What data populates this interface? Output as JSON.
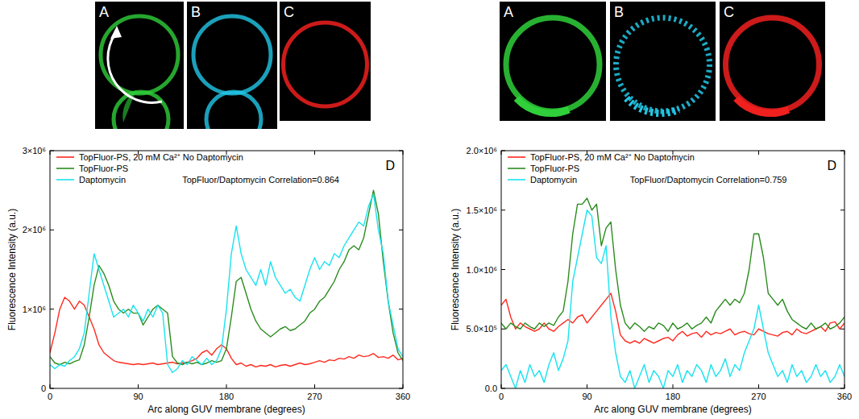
{
  "chart_data": [
    {
      "type": "line",
      "image_labels": [
        "A",
        "B",
        "C"
      ],
      "panel_label": "D",
      "x_label": "Arc along GUV membrane (degrees)",
      "y_label": "Fluorescence Intensity (a.u.)",
      "annotation": "TopFluor/Daptomycin Correlation=0.864",
      "legend": "upper left",
      "grid": false,
      "xlim": [
        0,
        360
      ],
      "xticks": [
        0,
        90,
        180,
        270,
        360
      ],
      "ylim": [
        0,
        3000000
      ],
      "yticks": [
        0,
        {
          "value": 1000000,
          "label": "1×10⁶"
        },
        {
          "value": 2000000,
          "label": "2×10⁶"
        },
        {
          "value": 3000000,
          "label": "3×10⁶"
        }
      ],
      "x": [
        0,
        5,
        10,
        15,
        20,
        25,
        30,
        35,
        40,
        45,
        50,
        55,
        60,
        65,
        70,
        75,
        80,
        85,
        90,
        95,
        100,
        105,
        110,
        115,
        120,
        125,
        130,
        135,
        140,
        145,
        150,
        155,
        160,
        165,
        170,
        175,
        180,
        185,
        190,
        195,
        200,
        205,
        210,
        215,
        220,
        225,
        230,
        235,
        240,
        245,
        250,
        255,
        260,
        265,
        270,
        275,
        280,
        285,
        290,
        295,
        300,
        305,
        310,
        315,
        320,
        325,
        330,
        335,
        340,
        345,
        350,
        355,
        360
      ],
      "series": [
        {
          "name": "TopFluor-PS, 20 mM Ca²⁺ No Daptomycin",
          "color": "#ff2a1f",
          "values": [
            450000,
            700000,
            1000000,
            1150000,
            1100000,
            1000000,
            1100000,
            1050000,
            900000,
            750000,
            550000,
            450000,
            400000,
            350000,
            330000,
            320000,
            310000,
            300000,
            310000,
            300000,
            310000,
            320000,
            300000,
            310000,
            320000,
            330000,
            310000,
            320000,
            330000,
            350000,
            380000,
            450000,
            480000,
            420000,
            500000,
            550000,
            500000,
            380000,
            300000,
            320000,
            280000,
            300000,
            270000,
            290000,
            280000,
            300000,
            270000,
            290000,
            300000,
            280000,
            300000,
            320000,
            300000,
            310000,
            330000,
            350000,
            330000,
            360000,
            350000,
            380000,
            370000,
            400000,
            380000,
            420000,
            400000,
            410000,
            440000,
            390000,
            400000,
            380000,
            420000,
            360000,
            380000
          ]
        },
        {
          "name": "TopFluor-PS",
          "color": "#2a8c1e",
          "values": [
            400000,
            320000,
            300000,
            330000,
            310000,
            340000,
            360000,
            550000,
            900000,
            1300000,
            1550000,
            1450000,
            1300000,
            1100000,
            1000000,
            950000,
            1000000,
            950000,
            950000,
            800000,
            900000,
            1000000,
            1050000,
            1000000,
            950000,
            400000,
            320000,
            300000,
            330000,
            310000,
            330000,
            300000,
            320000,
            350000,
            330000,
            350000,
            500000,
            900000,
            1350000,
            1400000,
            1200000,
            1000000,
            850000,
            750000,
            700000,
            650000,
            700000,
            750000,
            780000,
            730000,
            750000,
            800000,
            850000,
            950000,
            1000000,
            1100000,
            1150000,
            1250000,
            1350000,
            1500000,
            1600000,
            1750000,
            1800000,
            1750000,
            1900000,
            2200000,
            2500000,
            2200000,
            1600000,
            1100000,
            700000,
            450000,
            350000
          ]
        },
        {
          "name": "Daptomycin",
          "color": "#19e3f0",
          "values": [
            300000,
            250000,
            300000,
            280000,
            350000,
            400000,
            500000,
            700000,
            1200000,
            1700000,
            1500000,
            1300000,
            1100000,
            900000,
            950000,
            1000000,
            900000,
            1050000,
            950000,
            850000,
            1000000,
            900000,
            1050000,
            950000,
            300000,
            200000,
            250000,
            350000,
            300000,
            400000,
            350000,
            300000,
            380000,
            300000,
            350000,
            500000,
            1000000,
            1700000,
            2050000,
            1700000,
            1500000,
            1400000,
            1300000,
            1500000,
            1300000,
            1600000,
            1400000,
            1300000,
            1200000,
            1250000,
            1150000,
            1100000,
            1300000,
            1500000,
            1650000,
            1500000,
            1600000,
            1550000,
            1700000,
            1650000,
            1800000,
            1900000,
            2000000,
            2100000,
            2050000,
            2300000,
            2450000,
            2000000,
            1700000,
            1100000,
            800000,
            500000,
            400000
          ]
        }
      ]
    },
    {
      "type": "line",
      "image_labels": [
        "A",
        "B",
        "C"
      ],
      "panel_label": "D",
      "x_label": "Arc along GUV membrane (degrees)",
      "y_label": "Fluorescence Intensity (a.u.)",
      "annotation": "TopFluor/Daptomycin Correlation=0.759",
      "legend": "upper left",
      "grid": false,
      "xlim": [
        0,
        360
      ],
      "xticks": [
        0,
        90,
        180,
        270,
        360
      ],
      "ylim": [
        0,
        2000000
      ],
      "yticks": [
        {
          "value": 0,
          "label": "0.0"
        },
        {
          "value": 500000,
          "label": "5.0×10⁵"
        },
        {
          "value": 1000000,
          "label": "1.0×10⁶"
        },
        {
          "value": 1500000,
          "label": "1.5×10⁶"
        },
        {
          "value": 2000000,
          "label": "2.0×10⁶"
        }
      ],
      "x": [
        0,
        5,
        10,
        15,
        20,
        25,
        30,
        35,
        40,
        45,
        50,
        55,
        60,
        65,
        70,
        75,
        80,
        85,
        90,
        95,
        100,
        105,
        110,
        115,
        120,
        125,
        130,
        135,
        140,
        145,
        150,
        155,
        160,
        165,
        170,
        175,
        180,
        185,
        190,
        195,
        200,
        205,
        210,
        215,
        220,
        225,
        230,
        235,
        240,
        245,
        250,
        255,
        260,
        265,
        270,
        275,
        280,
        285,
        290,
        295,
        300,
        305,
        310,
        315,
        320,
        325,
        330,
        335,
        340,
        345,
        350,
        355,
        360
      ],
      "series": [
        {
          "name": "TopFluor-PS, 20 mM Ca²⁺ No Daptomycin",
          "color": "#ff2a1f",
          "values": [
            700000,
            750000,
            600000,
            500000,
            550000,
            520000,
            500000,
            480000,
            500000,
            550000,
            500000,
            480000,
            520000,
            550000,
            580000,
            550000,
            600000,
            620000,
            550000,
            600000,
            650000,
            700000,
            750000,
            800000,
            650000,
            450000,
            400000,
            380000,
            400000,
            380000,
            420000,
            400000,
            380000,
            400000,
            420000,
            430000,
            400000,
            450000,
            480000,
            440000,
            460000,
            470000,
            430000,
            480000,
            450000,
            470000,
            460000,
            480000,
            500000,
            450000,
            470000,
            480000,
            460000,
            450000,
            500000,
            480000,
            460000,
            450000,
            440000,
            470000,
            480000,
            450000,
            500000,
            470000,
            460000,
            480000,
            500000,
            520000,
            480000,
            550000,
            560000,
            500000,
            550000
          ]
        },
        {
          "name": "TopFluor-PS",
          "color": "#2a8c1e",
          "values": [
            550000,
            500000,
            550000,
            520000,
            500000,
            550000,
            520000,
            500000,
            550000,
            520000,
            550000,
            530000,
            600000,
            650000,
            900000,
            1300000,
            1550000,
            1550000,
            1600000,
            1500000,
            1550000,
            1200000,
            1350000,
            1400000,
            1000000,
            700000,
            550000,
            500000,
            550000,
            520000,
            480000,
            520000,
            500000,
            550000,
            530000,
            480000,
            550000,
            500000,
            520000,
            550000,
            500000,
            530000,
            550000,
            600000,
            550000,
            650000,
            700000,
            750000,
            700000,
            750000,
            720000,
            800000,
            1000000,
            1300000,
            1300000,
            1100000,
            800000,
            750000,
            700000,
            750000,
            650000,
            580000,
            550000,
            520000,
            500000,
            550000,
            500000,
            520000,
            550000,
            500000,
            520000,
            550000,
            600000
          ]
        },
        {
          "name": "Daptomycin",
          "color": "#19e3f0",
          "values": [
            150000,
            200000,
            100000,
            0,
            150000,
            50000,
            200000,
            100000,
            150000,
            50000,
            200000,
            300000,
            150000,
            250000,
            400000,
            900000,
            1100000,
            1300000,
            1500000,
            1450000,
            1100000,
            1050000,
            1200000,
            600000,
            300000,
            100000,
            50000,
            150000,
            0,
            100000,
            200000,
            50000,
            150000,
            100000,
            0,
            150000,
            100000,
            200000,
            50000,
            150000,
            100000,
            200000,
            150000,
            50000,
            200000,
            100000,
            150000,
            250000,
            100000,
            200000,
            150000,
            300000,
            400000,
            500000,
            700000,
            500000,
            300000,
            200000,
            100000,
            150000,
            50000,
            200000,
            100000,
            150000,
            50000,
            100000,
            200000,
            100000,
            150000,
            50000,
            100000,
            200000,
            100000
          ]
        }
      ]
    }
  ]
}
